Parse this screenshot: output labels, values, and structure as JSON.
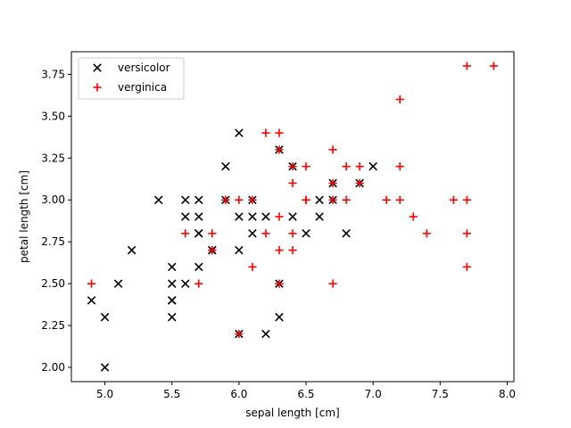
{
  "chart_data": {
    "type": "scatter",
    "xlabel": "sepal length [cm]",
    "ylabel": "petal length [cm]",
    "xlim": [
      4.75,
      8.05
    ],
    "ylim": [
      1.915,
      3.885
    ],
    "xticks": [
      5.0,
      5.5,
      6.0,
      6.5,
      7.0,
      7.5,
      8.0
    ],
    "xtick_labels": [
      "5.0",
      "5.5",
      "6.0",
      "6.5",
      "7.0",
      "7.5",
      "8.0"
    ],
    "yticks": [
      2.0,
      2.25,
      2.5,
      2.75,
      3.0,
      3.25,
      3.5,
      3.75
    ],
    "ytick_labels": [
      "2.00",
      "2.25",
      "2.50",
      "2.75",
      "3.00",
      "3.25",
      "3.50",
      "3.75"
    ],
    "grid": false,
    "legend_position": "top-left",
    "series": [
      {
        "name": "versicolor",
        "marker": "x",
        "color": "#000000",
        "points": [
          [
            7.0,
            3.2
          ],
          [
            6.4,
            3.2
          ],
          [
            6.9,
            3.1
          ],
          [
            5.5,
            2.3
          ],
          [
            6.5,
            2.8
          ],
          [
            5.7,
            2.8
          ],
          [
            6.3,
            3.3
          ],
          [
            4.9,
            2.4
          ],
          [
            6.6,
            2.9
          ],
          [
            5.2,
            2.7
          ],
          [
            5.0,
            2.0
          ],
          [
            5.9,
            3.0
          ],
          [
            6.0,
            2.2
          ],
          [
            6.1,
            2.9
          ],
          [
            5.6,
            2.9
          ],
          [
            6.7,
            3.1
          ],
          [
            5.6,
            3.0
          ],
          [
            5.8,
            2.7
          ],
          [
            6.2,
            2.2
          ],
          [
            5.6,
            2.5
          ],
          [
            5.9,
            3.2
          ],
          [
            6.1,
            2.8
          ],
          [
            6.3,
            2.5
          ],
          [
            6.4,
            2.9
          ],
          [
            6.6,
            3.0
          ],
          [
            6.8,
            2.8
          ],
          [
            6.7,
            3.0
          ],
          [
            6.0,
            2.9
          ],
          [
            5.7,
            2.6
          ],
          [
            5.5,
            2.4
          ],
          [
            5.8,
            2.7
          ],
          [
            6.0,
            2.7
          ],
          [
            5.4,
            3.0
          ],
          [
            6.0,
            3.4
          ],
          [
            6.3,
            2.3
          ],
          [
            5.5,
            2.5
          ],
          [
            5.5,
            2.6
          ],
          [
            5.0,
            2.3
          ],
          [
            5.7,
            3.0
          ],
          [
            5.7,
            2.9
          ],
          [
            6.2,
            2.9
          ],
          [
            5.1,
            2.5
          ],
          [
            5.7,
            2.8
          ],
          [
            5.5,
            2.4
          ],
          [
            6.1,
            3.0
          ]
        ]
      },
      {
        "name": "verginica",
        "marker": "+",
        "color": "#ff0000",
        "points": [
          [
            6.3,
            3.3
          ],
          [
            5.8,
            2.7
          ],
          [
            7.1,
            3.0
          ],
          [
            6.3,
            2.9
          ],
          [
            6.5,
            3.0
          ],
          [
            7.6,
            3.0
          ],
          [
            4.9,
            2.5
          ],
          [
            7.3,
            2.9
          ],
          [
            6.7,
            2.5
          ],
          [
            7.2,
            3.6
          ],
          [
            6.5,
            3.2
          ],
          [
            6.4,
            2.7
          ],
          [
            6.8,
            3.0
          ],
          [
            5.7,
            2.5
          ],
          [
            5.8,
            2.8
          ],
          [
            6.4,
            3.2
          ],
          [
            7.7,
            3.8
          ],
          [
            7.7,
            2.6
          ],
          [
            6.0,
            2.2
          ],
          [
            6.9,
            3.2
          ],
          [
            5.6,
            2.8
          ],
          [
            7.7,
            2.8
          ],
          [
            6.3,
            2.7
          ],
          [
            6.7,
            3.3
          ],
          [
            7.2,
            3.2
          ],
          [
            6.2,
            2.8
          ],
          [
            6.1,
            3.0
          ],
          [
            6.4,
            2.8
          ],
          [
            7.2,
            3.0
          ],
          [
            7.4,
            2.8
          ],
          [
            7.9,
            3.8
          ],
          [
            6.1,
            2.6
          ],
          [
            7.7,
            3.0
          ],
          [
            6.3,
            3.4
          ],
          [
            6.4,
            3.1
          ],
          [
            6.0,
            3.0
          ],
          [
            6.9,
            3.1
          ],
          [
            6.7,
            3.1
          ],
          [
            5.8,
            2.7
          ],
          [
            6.8,
            3.2
          ],
          [
            6.7,
            3.0
          ],
          [
            6.3,
            2.5
          ],
          [
            6.5,
            3.0
          ],
          [
            6.2,
            3.4
          ],
          [
            5.9,
            3.0
          ]
        ]
      }
    ]
  }
}
